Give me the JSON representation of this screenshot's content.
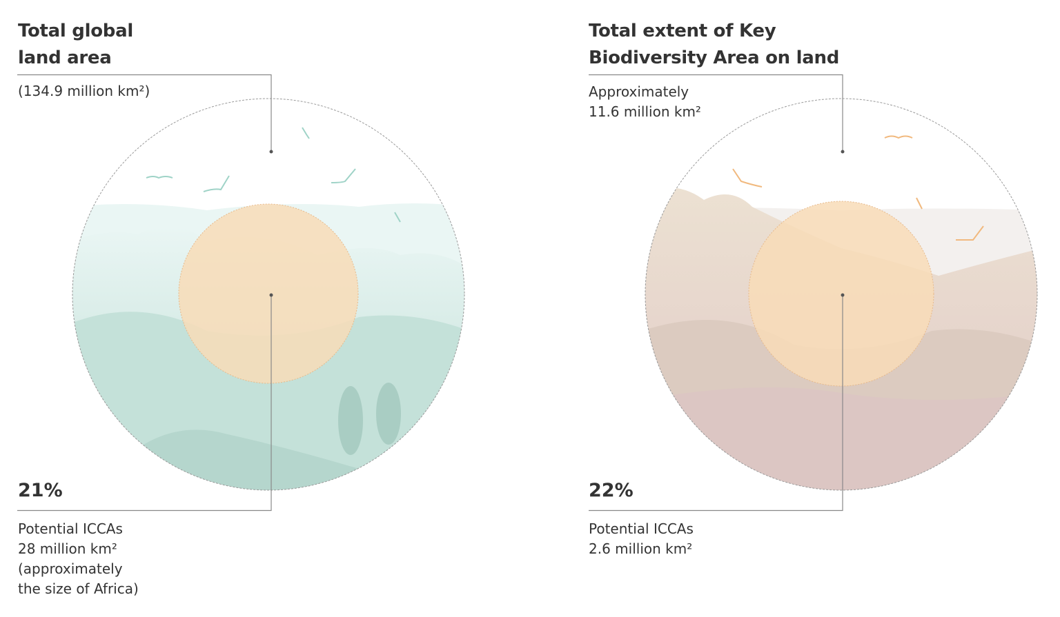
{
  "panels": [
    {
      "title_line1": "Total global",
      "title_line2": "land area",
      "outer_value": "(134.9 million km²)",
      "percent": "21%",
      "bottom_lines": [
        "Potential ICCAs",
        "28 million km²",
        "(approximately",
        "the size of Africa)"
      ],
      "colors": {
        "landscape": "#c9e4dd",
        "inner": "#f8dcb7"
      }
    },
    {
      "title_line1": "Total extent of Key",
      "title_line2": "Biodiversity Area on land",
      "outer_value_lines": [
        "Approximately",
        "11.6 million km²"
      ],
      "percent": "22%",
      "bottom_lines": [
        "Potential ICCAs",
        "2.6 million km²"
      ],
      "colors": {
        "landscape": "#e6d9c9",
        "inner": "#f8dcb7"
      }
    }
  ]
}
